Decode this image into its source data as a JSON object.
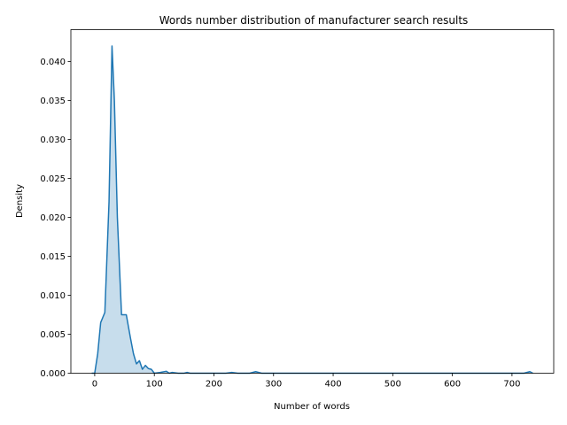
{
  "chart_data": {
    "type": "area",
    "title": "Words number distribution of manufacturer search results",
    "xlabel": "Number of words",
    "ylabel": "Density",
    "xlim": [
      -40,
      770
    ],
    "ylim": [
      0,
      0.0441
    ],
    "xticks": [
      0,
      100,
      200,
      300,
      400,
      500,
      600,
      700
    ],
    "yticks": [
      0.0,
      0.005,
      0.01,
      0.015,
      0.02,
      0.025,
      0.03,
      0.035,
      0.04
    ],
    "ytick_labels": [
      "0.000",
      "0.005",
      "0.010",
      "0.015",
      "0.020",
      "0.025",
      "0.030",
      "0.035",
      "0.040"
    ],
    "grid": false,
    "line_color": "#1f77b4",
    "fill_color": "#1f77b4",
    "fill_opacity": 0.25,
    "series": [
      {
        "x": [
          -5,
          0,
          5,
          10,
          17,
          24,
          29,
          33,
          38,
          45,
          53,
          60,
          65,
          70,
          75,
          80,
          85,
          90,
          95,
          100,
          110,
          120,
          125,
          130,
          140,
          150,
          155,
          160,
          170,
          180,
          200,
          220,
          230,
          240,
          250,
          260,
          265,
          270,
          280,
          300,
          350,
          400,
          450,
          500,
          550,
          600,
          650,
          700,
          720,
          730,
          735
        ],
        "y": [
          0.0,
          0.0,
          0.0025,
          0.0065,
          0.0078,
          0.022,
          0.042,
          0.035,
          0.02,
          0.0075,
          0.0075,
          0.0045,
          0.0025,
          0.0012,
          0.0016,
          0.0005,
          0.001,
          0.0006,
          0.0005,
          0.0,
          0.0001,
          0.00025,
          0.0,
          0.0001,
          0.0,
          0.0,
          0.0001,
          0.0,
          0.0,
          0.0,
          0.0,
          0.0,
          0.0001,
          0.0,
          0.0,
          0.0,
          0.0001,
          0.0002,
          0.0,
          0.0,
          0.0,
          0.0,
          0.0,
          0.0,
          0.0,
          0.0,
          0.0,
          0.0,
          0.0,
          0.0002,
          0.0
        ]
      }
    ]
  }
}
